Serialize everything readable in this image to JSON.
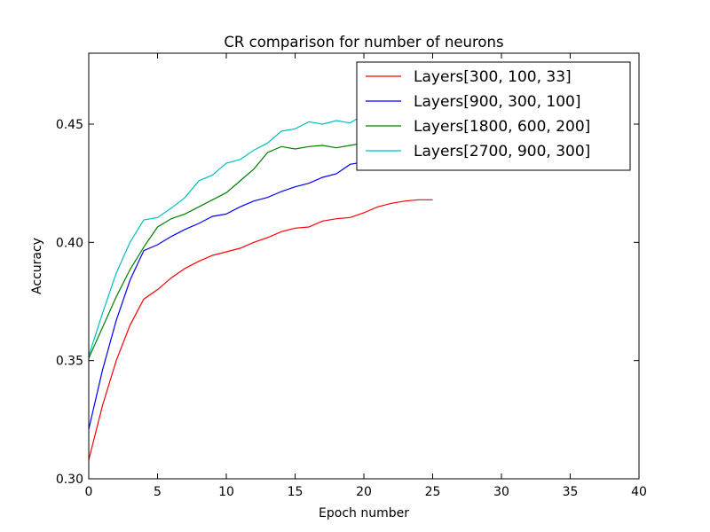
{
  "chart_data": {
    "type": "line",
    "title": "CR comparison for number of neurons",
    "xlabel": "Epoch number",
    "ylabel": "Accuracy",
    "xlim": [
      0,
      40
    ],
    "ylim": [
      0.3,
      0.48
    ],
    "xticks": [
      0,
      5,
      10,
      15,
      20,
      25,
      30,
      35,
      40
    ],
    "yticks": [
      0.3,
      0.35,
      0.4,
      0.45
    ],
    "xtick_labels": [
      "0",
      "5",
      "10",
      "15",
      "20",
      "25",
      "30",
      "35",
      "40"
    ],
    "ytick_labels": [
      "0.30",
      "0.35",
      "0.40",
      "0.45"
    ],
    "grid": false,
    "legend_position": "top-right",
    "series": [
      {
        "name": "Layers[300, 100, 33]",
        "color": "#ff0000",
        "x": [
          0,
          1,
          2,
          3,
          4,
          5,
          6,
          7,
          8,
          9,
          10,
          11,
          12,
          13,
          14,
          15,
          16,
          17,
          18,
          19,
          20,
          21,
          22,
          23,
          24,
          25
        ],
        "y": [
          0.308,
          0.331,
          0.35,
          0.365,
          0.376,
          0.38,
          0.385,
          0.389,
          0.392,
          0.3945,
          0.396,
          0.3975,
          0.4,
          0.402,
          0.4045,
          0.406,
          0.4065,
          0.409,
          0.41,
          0.4105,
          0.4125,
          0.415,
          0.4165,
          0.4175,
          0.418,
          0.418
        ]
      },
      {
        "name": "Layers[900, 300, 100]",
        "color": "#0000ff",
        "x": [
          0,
          1,
          2,
          3,
          4,
          5,
          6,
          7,
          8,
          9,
          10,
          11,
          12,
          13,
          14,
          15,
          16,
          17,
          18,
          19,
          20
        ],
        "y": [
          0.321,
          0.346,
          0.367,
          0.384,
          0.3965,
          0.399,
          0.4025,
          0.4055,
          0.408,
          0.411,
          0.412,
          0.415,
          0.4175,
          0.419,
          0.4215,
          0.4235,
          0.425,
          0.4275,
          0.429,
          0.433,
          0.434
        ]
      },
      {
        "name": "Layers[1800, 600, 200]",
        "color": "#008000",
        "x": [
          0,
          1,
          2,
          3,
          4,
          5,
          6,
          7,
          8,
          9,
          10,
          11,
          12,
          13,
          14,
          15,
          16,
          17,
          18,
          19,
          20
        ],
        "y": [
          0.351,
          0.364,
          0.377,
          0.3885,
          0.398,
          0.4065,
          0.41,
          0.412,
          0.415,
          0.418,
          0.421,
          0.426,
          0.431,
          0.438,
          0.4405,
          0.4395,
          0.4405,
          0.441,
          0.44,
          0.441,
          0.442
        ]
      },
      {
        "name": "Layers[2700, 900, 300]",
        "color": "#00bfbf",
        "x": [
          0,
          1,
          2,
          3,
          4,
          5,
          6,
          7,
          8,
          9,
          10,
          11,
          12,
          13,
          14,
          15,
          16,
          17,
          18,
          19,
          20
        ],
        "y": [
          0.352,
          0.37,
          0.387,
          0.4,
          0.4095,
          0.4105,
          0.4145,
          0.419,
          0.426,
          0.4285,
          0.4335,
          0.435,
          0.439,
          0.442,
          0.447,
          0.448,
          0.451,
          0.45,
          0.4515,
          0.4505,
          0.454
        ]
      }
    ]
  }
}
